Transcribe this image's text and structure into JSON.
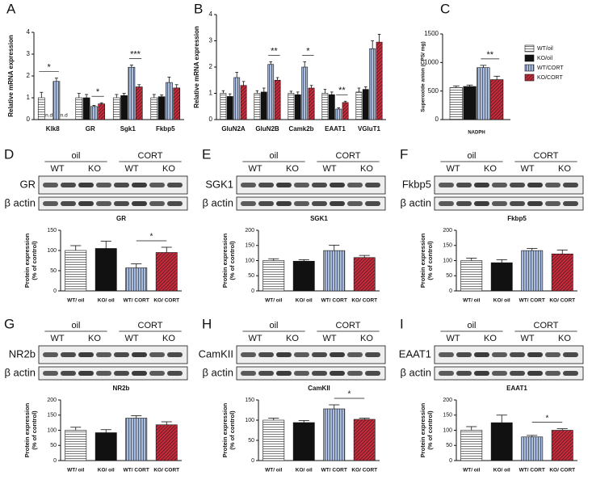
{
  "panel_labels": [
    "A",
    "B",
    "C",
    "D",
    "E",
    "F",
    "G",
    "H",
    "I"
  ],
  "chart_data": [
    {
      "type": "bar",
      "ylabel": "Relative mRNA expression",
      "categories": [
        "Klk8",
        "GR",
        "Sgk1",
        "Fkbp5"
      ],
      "ylim": [
        0,
        4
      ],
      "yticks": [
        0,
        1,
        2,
        3,
        4
      ],
      "series": [
        {
          "name": "WT/oil",
          "color": "#ffffff",
          "values": [
            1.0,
            1.0,
            1.0,
            1.0
          ],
          "errors": [
            0.25,
            0.2,
            0.15,
            0.15
          ]
        },
        {
          "name": "KO/oil",
          "color": "#111111",
          "values": [
            null,
            1.0,
            1.1,
            1.05
          ],
          "errors": [
            null,
            0.15,
            0.1,
            0.08
          ],
          "value_labels": [
            "n.d",
            null,
            null,
            null
          ]
        },
        {
          "name": "WT/CORT",
          "color": "#a9bde0",
          "values": [
            1.75,
            0.6,
            2.4,
            1.7
          ],
          "errors": [
            0.15,
            0.05,
            0.1,
            0.25
          ]
        },
        {
          "name": "KO/CORT",
          "color": "#d0283a",
          "values": [
            null,
            0.72,
            1.5,
            1.45
          ],
          "errors": [
            null,
            0.05,
            0.1,
            0.15
          ],
          "value_labels": [
            "n.d",
            null,
            null,
            null
          ]
        }
      ],
      "annotations": [
        {
          "text": "*",
          "category": "Klk8",
          "series": [
            "WT/oil",
            "WT/CORT"
          ]
        },
        {
          "text": "*",
          "category": "GR",
          "series": [
            "WT/CORT",
            "KO/CORT"
          ]
        },
        {
          "text": "***",
          "category": "Sgk1",
          "series": [
            "WT/CORT",
            "KO/CORT"
          ]
        }
      ]
    },
    {
      "type": "bar",
      "ylabel": "Relative mRNA expression",
      "categories": [
        "GluN2A",
        "GluN2B",
        "Camk2b",
        "EAAT1",
        "VGluT1"
      ],
      "ylim": [
        0,
        4
      ],
      "yticks": [
        0,
        1,
        2,
        3,
        4
      ],
      "series": [
        {
          "name": "WT/oil",
          "color": "#ffffff",
          "values": [
            1.0,
            1.0,
            1.0,
            1.0,
            1.05
          ],
          "errors": [
            0.1,
            0.1,
            0.08,
            0.15,
            0.15
          ]
        },
        {
          "name": "KO/oil",
          "color": "#111111",
          "values": [
            0.88,
            1.05,
            0.95,
            0.95,
            1.15
          ],
          "errors": [
            0.1,
            0.15,
            0.1,
            0.1,
            0.1
          ]
        },
        {
          "name": "WT/CORT",
          "color": "#a9bde0",
          "values": [
            1.6,
            2.1,
            2.0,
            0.4,
            2.7
          ],
          "errors": [
            0.2,
            0.1,
            0.2,
            0.05,
            0.3
          ]
        },
        {
          "name": "KO/CORT",
          "color": "#d0283a",
          "values": [
            1.3,
            1.5,
            1.2,
            0.65,
            2.95
          ],
          "errors": [
            0.15,
            0.1,
            0.1,
            0.05,
            0.3
          ]
        }
      ],
      "annotations": [
        {
          "text": "**",
          "category": "GluN2B",
          "series": [
            "WT/CORT",
            "KO/CORT"
          ]
        },
        {
          "text": "*",
          "category": "Camk2b",
          "series": [
            "WT/CORT",
            "KO/CORT"
          ]
        },
        {
          "text": "**",
          "category": "EAAT1",
          "series": [
            "WT/CORT",
            "KO/CORT"
          ]
        }
      ]
    },
    {
      "type": "bar",
      "ylabel": "Superoxide anion (CPS/ mg)",
      "categories": [
        "NADPH"
      ],
      "ylim": [
        0,
        1500
      ],
      "yticks": [
        0,
        500,
        1000,
        1500
      ],
      "legend": "right",
      "series": [
        {
          "name": "WT/oil",
          "color": "#ffffff",
          "values": [
            560
          ],
          "errors": [
            30
          ]
        },
        {
          "name": "KO/oil",
          "color": "#111111",
          "values": [
            580
          ],
          "errors": [
            25
          ]
        },
        {
          "name": "WT/CORT",
          "color": "#a9bde0",
          "values": [
            910
          ],
          "errors": [
            40
          ]
        },
        {
          "name": "KO/CORT",
          "color": "#d0283a",
          "values": [
            700
          ],
          "errors": [
            60
          ]
        }
      ],
      "annotations": [
        {
          "text": "**",
          "category": "NADPH",
          "series": [
            "WT/CORT",
            "KO/CORT"
          ]
        }
      ]
    },
    {
      "type": "bar",
      "title": "GR",
      "ylabel": [
        "Protein expression",
        "(% of control)"
      ],
      "categories": [
        "WT/ oil",
        "KO/ oil",
        "WT/ CORT",
        "KO/ CORT"
      ],
      "colors": [
        "#ffffff",
        "#111111",
        "#a9bde0",
        "#d0283a"
      ],
      "values": [
        100,
        105,
        57,
        95
      ],
      "errors": [
        12,
        18,
        10,
        13
      ],
      "ylim": [
        0,
        150
      ],
      "yticks": [
        0,
        50,
        100,
        150
      ],
      "annotations": [
        {
          "text": "*",
          "categories": [
            "WT/ CORT",
            "KO/ CORT"
          ]
        }
      ]
    },
    {
      "type": "bar",
      "title": "SGK1",
      "ylabel": [
        "Protein expression",
        "(% of control)"
      ],
      "categories": [
        "WT/ oil",
        "KO/ oil",
        "WT/ CORT",
        "KO/ CORT"
      ],
      "colors": [
        "#ffffff",
        "#111111",
        "#a9bde0",
        "#d0283a"
      ],
      "values": [
        100,
        98,
        133,
        110
      ],
      "errors": [
        6,
        5,
        18,
        7
      ],
      "ylim": [
        0,
        200
      ],
      "yticks": [
        0,
        50,
        100,
        150,
        200
      ],
      "annotations": []
    },
    {
      "type": "bar",
      "title": "Fkbp5",
      "ylabel": [
        "Protein expression",
        "(% of control)"
      ],
      "categories": [
        "WT/ oil",
        "KO/ oil",
        "WT/ CORT",
        "KO/ CORT"
      ],
      "colors": [
        "#ffffff",
        "#111111",
        "#a9bde0",
        "#d0283a"
      ],
      "values": [
        100,
        93,
        133,
        122
      ],
      "errors": [
        8,
        10,
        7,
        13
      ],
      "ylim": [
        0,
        200
      ],
      "yticks": [
        0,
        50,
        100,
        150,
        200
      ],
      "annotations": []
    },
    {
      "type": "bar",
      "title": "NR2b",
      "ylabel": [
        "Protein expression",
        "(% of control)"
      ],
      "categories": [
        "WT/ oil",
        "KO/ oil",
        "WT/ CORT",
        "KO/ CORT"
      ],
      "colors": [
        "#ffffff",
        "#111111",
        "#a9bde0",
        "#d0283a"
      ],
      "values": [
        100,
        92,
        140,
        118
      ],
      "errors": [
        10,
        10,
        8,
        10
      ],
      "ylim": [
        0,
        200
      ],
      "yticks": [
        0,
        50,
        100,
        150,
        200
      ],
      "annotations": []
    },
    {
      "type": "bar",
      "title": "CamKII",
      "ylabel": [
        "Protein expression",
        "(% of control)"
      ],
      "categories": [
        "WT/ oil",
        "KO/ oil",
        "WT/ CORT",
        "KO/ CORT"
      ],
      "colors": [
        "#ffffff",
        "#111111",
        "#a9bde0",
        "#d0283a"
      ],
      "values": [
        100,
        94,
        128,
        102
      ],
      "errors": [
        5,
        5,
        10,
        3
      ],
      "ylim": [
        0,
        150
      ],
      "yticks": [
        0,
        50,
        100,
        150
      ],
      "annotations": [
        {
          "text": "*",
          "categories": [
            "WT/ CORT",
            "KO/ CORT"
          ]
        }
      ]
    },
    {
      "type": "bar",
      "title": "EAAT1",
      "ylabel": [
        "Protein expression",
        "(% of control)"
      ],
      "categories": [
        "WT/ oil",
        "KO/ oil",
        "WT/ CORT",
        "KO/ CORT"
      ],
      "colors": [
        "#ffffff",
        "#111111",
        "#a9bde0",
        "#d0283a"
      ],
      "values": [
        100,
        125,
        78,
        100
      ],
      "errors": [
        12,
        25,
        5,
        5
      ],
      "ylim": [
        0,
        200
      ],
      "yticks": [
        0,
        50,
        100,
        150,
        200
      ],
      "annotations": [
        {
          "text": "*",
          "categories": [
            "WT/ CORT",
            "KO/ CORT"
          ]
        }
      ]
    }
  ],
  "blots": [
    {
      "groups": [
        "oil",
        "CORT"
      ],
      "lanes": [
        "WT",
        "KO",
        "WT",
        "KO"
      ],
      "bands": [
        "GR",
        "β actin"
      ]
    },
    {
      "groups": [
        "oil",
        "CORT"
      ],
      "lanes": [
        "WT",
        "KO",
        "WT",
        "KO"
      ],
      "bands": [
        "SGK1",
        "β actin"
      ]
    },
    {
      "groups": [
        "oil",
        "CORT"
      ],
      "lanes": [
        "WT",
        "KO",
        "WT",
        "KO"
      ],
      "bands": [
        "Fkbp5",
        "β actin"
      ]
    },
    {
      "groups": [
        "oil",
        "CORT"
      ],
      "lanes": [
        "WT",
        "KO",
        "WT",
        "KO"
      ],
      "bands": [
        "NR2b",
        "β actin"
      ]
    },
    {
      "groups": [
        "oil",
        "CORT"
      ],
      "lanes": [
        "WT",
        "KO",
        "WT",
        "KO"
      ],
      "bands": [
        "CamKII",
        "β actin"
      ]
    },
    {
      "groups": [
        "oil",
        "CORT"
      ],
      "lanes": [
        "WT",
        "KO",
        "WT",
        "KO"
      ],
      "bands": [
        "EAAT1",
        "β actin"
      ]
    }
  ]
}
